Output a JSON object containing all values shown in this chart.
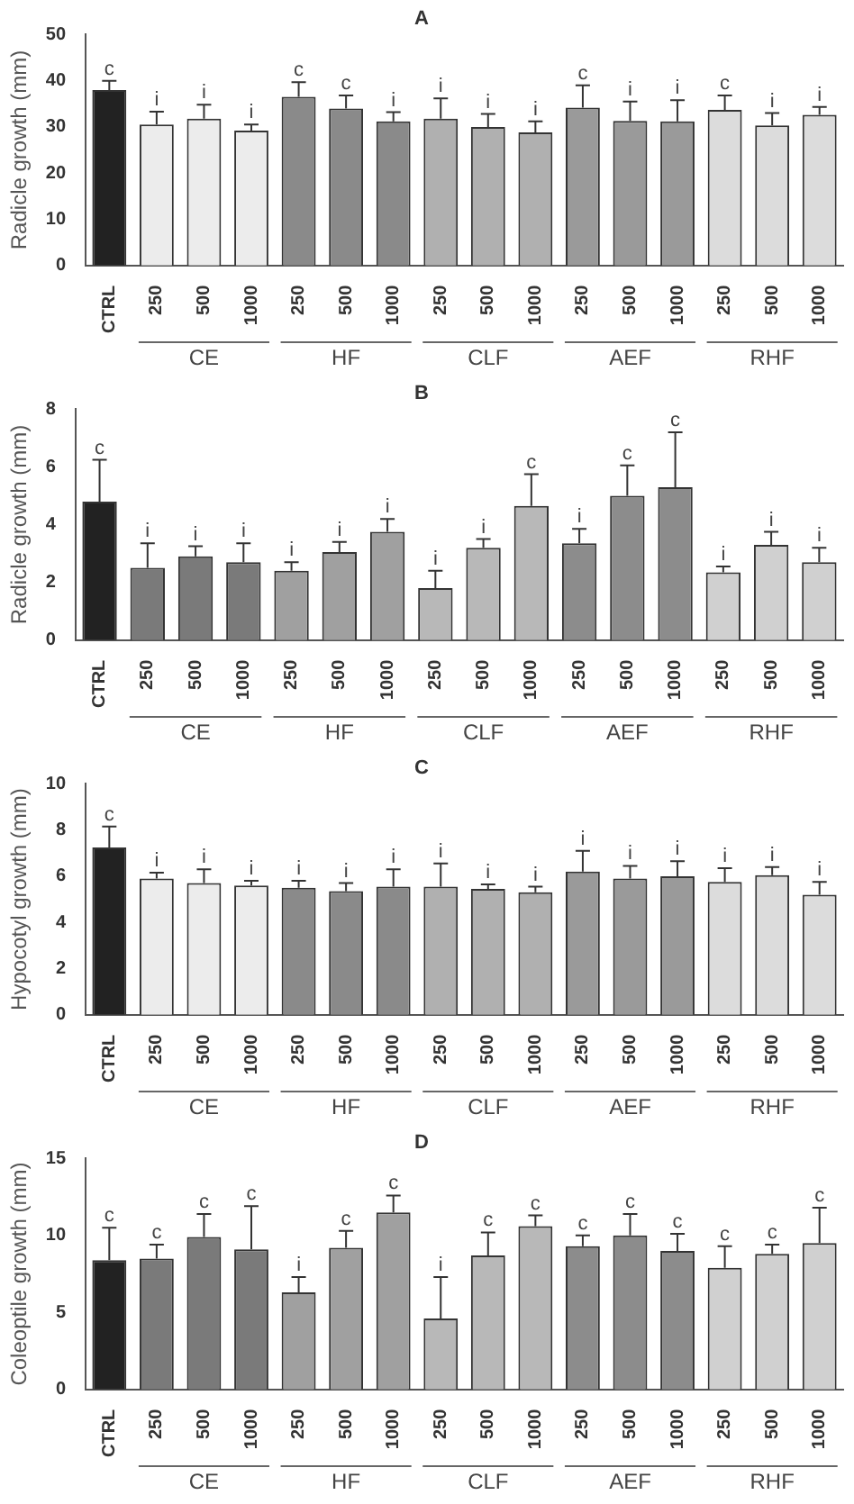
{
  "chart_data": [
    {
      "type": "bar",
      "title": "A",
      "ylabel": "Radicle growth (mm)",
      "categories": [
        "CTRL",
        "250",
        "500",
        "1000",
        "250",
        "500",
        "1000",
        "250",
        "500",
        "1000",
        "250",
        "500",
        "1000",
        "250",
        "500",
        "1000"
      ],
      "values": [
        38,
        30.5,
        31.8,
        29.2,
        36.5,
        34,
        31.2,
        31.8,
        30,
        28.8,
        34.2,
        31.3,
        31.2,
        33.7,
        30.3,
        32.6
      ],
      "errors": [
        [
          38,
          40
        ],
        [
          30.5,
          33.3
        ],
        [
          31.8,
          34.8
        ],
        [
          29.2,
          30.5
        ],
        [
          36.5,
          39.7
        ],
        [
          34,
          36.8
        ],
        [
          31.2,
          33.2
        ],
        [
          31.8,
          36.2
        ],
        [
          30,
          32.8
        ],
        [
          28.8,
          31.2
        ],
        [
          34.2,
          39
        ],
        [
          31.3,
          35.5
        ],
        [
          31.2,
          35.8
        ],
        [
          33.7,
          36.8
        ],
        [
          30.3,
          33
        ],
        [
          32.6,
          34.3
        ]
      ],
      "value_labels": [
        "c",
        "i",
        "i",
        "i",
        "c",
        "c",
        "i",
        "i",
        "i",
        "i",
        "c",
        "i",
        "i",
        "c",
        "i",
        "i"
      ],
      "colors": [
        "#222222",
        "#ececec",
        "#ececec",
        "#ececec",
        "#8a8a8a",
        "#8a8a8a",
        "#8a8a8a",
        "#b0b0b0",
        "#b0b0b0",
        "#b0b0b0",
        "#9a9a9a",
        "#9a9a9a",
        "#9a9a9a",
        "#dcdcdc",
        "#dcdcdc",
        "#dcdcdc"
      ],
      "ylim": [
        0,
        50
      ],
      "yticks": [
        0,
        10,
        20,
        30,
        40,
        50
      ],
      "annotations": [
        "CE",
        "HF",
        "CLF",
        "AEF",
        "RHF"
      ]
    },
    {
      "type": "bar",
      "title": "B",
      "ylabel": "Radicle growth (mm)",
      "categories": [
        "CTRL",
        "250",
        "500",
        "1000",
        "250",
        "500",
        "1000",
        "250",
        "500",
        "1000",
        "250",
        "500",
        "1000",
        "250",
        "500",
        "1000"
      ],
      "values": [
        4.8,
        2.5,
        2.9,
        2.7,
        2.4,
        3.05,
        3.75,
        1.8,
        3.2,
        4.65,
        3.35,
        5,
        5.3,
        2.35,
        3.3,
        2.7
      ],
      "errors": [
        [
          4.8,
          6.25
        ],
        [
          2.5,
          3.35
        ],
        [
          2.9,
          3.25
        ],
        [
          2.7,
          3.35
        ],
        [
          2.4,
          2.7
        ],
        [
          3.05,
          3.4
        ],
        [
          3.75,
          4.2
        ],
        [
          1.8,
          2.4
        ],
        [
          3.2,
          3.5
        ],
        [
          4.65,
          5.75
        ],
        [
          3.35,
          3.85
        ],
        [
          5,
          6.05
        ],
        [
          5.3,
          7.2
        ],
        [
          2.35,
          2.55
        ],
        [
          3.3,
          3.75
        ],
        [
          2.7,
          3.2
        ]
      ],
      "value_labels": [
        "c",
        "i",
        "i",
        "i",
        "i",
        "i",
        "i",
        "i",
        "i",
        "c",
        "i",
        "c",
        "c",
        "i",
        "i",
        "i"
      ],
      "colors": [
        "#222222",
        "#7a7a7a",
        "#7a7a7a",
        "#7a7a7a",
        "#a0a0a0",
        "#a0a0a0",
        "#a0a0a0",
        "#b8b8b8",
        "#b8b8b8",
        "#b8b8b8",
        "#8c8c8c",
        "#8c8c8c",
        "#8c8c8c",
        "#d0d0d0",
        "#d0d0d0",
        "#d0d0d0"
      ],
      "ylim": [
        0,
        8
      ],
      "yticks": [
        0,
        2,
        4,
        6,
        8
      ],
      "annotations": [
        "CE",
        "HF",
        "CLF",
        "AEF",
        "RHF"
      ]
    },
    {
      "type": "bar",
      "title": "C",
      "ylabel": "Hypocotyl growth (mm)",
      "categories": [
        "CTRL",
        "250",
        "500",
        "1000",
        "250",
        "500",
        "1000",
        "250",
        "500",
        "1000",
        "250",
        "500",
        "1000",
        "250",
        "500",
        "1000"
      ],
      "values": [
        7.25,
        5.9,
        5.7,
        5.6,
        5.5,
        5.35,
        5.55,
        5.55,
        5.45,
        5.3,
        6.2,
        5.9,
        6,
        5.75,
        6.05,
        5.2
      ],
      "errors": [
        [
          7.25,
          8.15
        ],
        [
          5.9,
          6.15
        ],
        [
          5.7,
          6.3
        ],
        [
          5.6,
          5.8
        ],
        [
          5.5,
          5.8
        ],
        [
          5.35,
          5.7
        ],
        [
          5.55,
          6.3
        ],
        [
          5.55,
          6.55
        ],
        [
          5.45,
          5.65
        ],
        [
          5.3,
          5.55
        ],
        [
          6.2,
          7.1
        ],
        [
          5.9,
          6.45
        ],
        [
          6,
          6.65
        ],
        [
          5.75,
          6.35
        ],
        [
          6.05,
          6.4
        ],
        [
          5.2,
          5.75
        ]
      ],
      "value_labels": [
        "c",
        "i",
        "i",
        "i",
        "i",
        "i",
        "i",
        "i",
        "i",
        "i",
        "i",
        "i",
        "i",
        "i",
        "i",
        "i"
      ],
      "colors": [
        "#222222",
        "#ececec",
        "#ececec",
        "#ececec",
        "#8a8a8a",
        "#8a8a8a",
        "#8a8a8a",
        "#b0b0b0",
        "#b0b0b0",
        "#b0b0b0",
        "#9a9a9a",
        "#9a9a9a",
        "#9a9a9a",
        "#dcdcdc",
        "#dcdcdc",
        "#dcdcdc"
      ],
      "ylim": [
        0,
        10
      ],
      "yticks": [
        0,
        2,
        4,
        6,
        8,
        10
      ],
      "annotations": [
        "CE",
        "HF",
        "CLF",
        "AEF",
        "RHF"
      ]
    },
    {
      "type": "bar",
      "title": "D",
      "ylabel": "Coleoptile growth (mm)",
      "categories": [
        "CTRL",
        "250",
        "500",
        "1000",
        "250",
        "500",
        "1000",
        "250",
        "500",
        "1000",
        "250",
        "500",
        "1000",
        "250",
        "500",
        "1000"
      ],
      "values": [
        8.4,
        8.5,
        9.9,
        9.1,
        6.3,
        9.2,
        11.5,
        4.6,
        8.7,
        10.6,
        9.3,
        10,
        9,
        7.9,
        8.8,
        9.5
      ],
      "errors": [
        [
          8.4,
          10.5
        ],
        [
          8.5,
          9.4
        ],
        [
          9.9,
          11.4
        ],
        [
          9.1,
          11.9
        ],
        [
          6.3,
          7.3
        ],
        [
          9.2,
          10.3
        ],
        [
          11.5,
          12.6
        ],
        [
          4.6,
          7.3
        ],
        [
          8.7,
          10.2
        ],
        [
          10.6,
          11.3
        ],
        [
          9.3,
          10
        ],
        [
          10,
          11.4
        ],
        [
          9,
          10.1
        ],
        [
          7.9,
          9.3
        ],
        [
          8.8,
          9.4
        ],
        [
          9.5,
          11.8
        ]
      ],
      "value_labels": [
        "c",
        "c",
        "c",
        "c",
        "i",
        "c",
        "c",
        "i",
        "c",
        "c",
        "c",
        "c",
        "c",
        "c",
        "c",
        "c"
      ],
      "colors": [
        "#222222",
        "#7a7a7a",
        "#7a7a7a",
        "#7a7a7a",
        "#a0a0a0",
        "#a0a0a0",
        "#a0a0a0",
        "#b8b8b8",
        "#b8b8b8",
        "#b8b8b8",
        "#8c8c8c",
        "#8c8c8c",
        "#8c8c8c",
        "#d0d0d0",
        "#d0d0d0",
        "#d0d0d0"
      ],
      "ylim": [
        0,
        15
      ],
      "yticks": [
        0,
        5,
        10,
        15
      ],
      "annotations": [
        "CE",
        "HF",
        "CLF",
        "AEF",
        "RHF"
      ]
    }
  ]
}
